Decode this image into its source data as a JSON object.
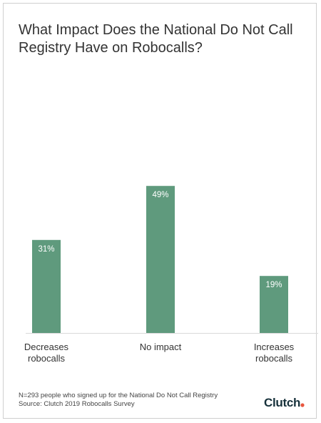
{
  "chart_data": {
    "type": "bar",
    "title": "What Impact Does the National Do Not Call Registry Have on Robocalls?",
    "xlabel": "",
    "ylabel": "",
    "categories": [
      "Decreases robocalls",
      "No impact",
      "Increases robocalls"
    ],
    "category_lines": [
      [
        "Decreases",
        "robocalls"
      ],
      [
        "No impact"
      ],
      [
        "Increases",
        "robocalls"
      ]
    ],
    "values": [
      31,
      49,
      19
    ],
    "data_labels": [
      "31%",
      "49%",
      "19%"
    ],
    "unit": "%",
    "ylim": [
      0,
      100
    ],
    "grid": false,
    "legend": "none"
  },
  "footnote": {
    "line1": "N=293 people who signed up for the National Do Not Call Registry",
    "line2": "Source: Clutch 2019 Robocalls Survey"
  },
  "brand": "Clutch",
  "colors": {
    "bar": "#5f9a7d",
    "bar_label": "#ffffff",
    "baseline": "#d9d9d9",
    "text": "#333333",
    "brand_dot": "#e8573f"
  }
}
